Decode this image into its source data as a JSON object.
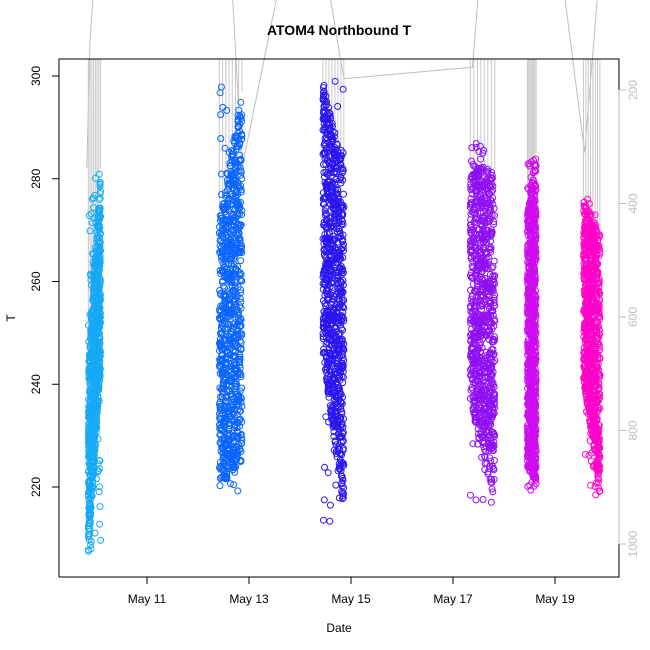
{
  "chart_data": {
    "type": "scatter",
    "title": "ATOM4 Northbound T",
    "xlabel": "Date",
    "ylabel": "T",
    "x_ticks": [
      "May 11",
      "May 13",
      "May 15",
      "May 17",
      "May 19"
    ],
    "xlim": [
      "May 9.7",
      "May 20.3"
    ],
    "ylim": [
      203,
      304
    ],
    "y_ticks": [
      220,
      240,
      260,
      280,
      300
    ],
    "secondary_axis": {
      "side": "right",
      "reversed": true,
      "ticks": [
        200,
        400,
        600,
        800,
        1000
      ],
      "ylim": [
        1067,
        124
      ],
      "color": "#bebebe"
    },
    "grid": false,
    "series": [
      {
        "color": "#17a9f5",
        "segments": [
          {
            "start": 9.85,
            "end": 10.09,
            "ymin": 206,
            "ymax": 282,
            "lowStart": 207,
            "lowEnd": 243,
            "highStart": 243,
            "highEnd": 282
          }
        ]
      },
      {
        "color": "#0a64ff",
        "segments": [
          {
            "start": 12.42,
            "end": 12.86,
            "ymin": 219,
            "ymax": 299,
            "lowStart": 220,
            "lowEnd": 225,
            "highStart": 272,
            "highEnd": 297
          }
        ]
      },
      {
        "color": "#2a16f0",
        "segments": [
          {
            "start": 14.45,
            "end": 14.86,
            "ymin": 212,
            "ymax": 300,
            "lowStart": 246,
            "lowEnd": 214,
            "highStart": 299,
            "highEnd": 282
          }
        ]
      },
      {
        "color": "#8f10f3",
        "segments": [
          {
            "start": 17.34,
            "end": 17.82,
            "ymin": 215,
            "ymax": 288,
            "lowStart": 236,
            "lowEnd": 217,
            "highStart": 283,
            "highEnd": 282
          }
        ]
      },
      {
        "color": "#cf0cf0",
        "segments": [
          {
            "start": 18.46,
            "end": 18.63,
            "ymin": 219,
            "ymax": 285,
            "lowStart": 224,
            "lowEnd": 220,
            "highStart": 273,
            "highEnd": 285
          }
        ]
      },
      {
        "color": "#ff05c8",
        "segments": [
          {
            "start": 19.56,
            "end": 19.88,
            "ymin": 217,
            "ymax": 277,
            "lowStart": 241,
            "lowEnd": 218,
            "highStart": 276,
            "highEnd": 269
          }
        ]
      }
    ],
    "secondary_line": {
      "color": "#bebebe",
      "points": [
        {
          "x": 9.82,
          "y": 338
        },
        {
          "x": 9.88,
          "y": 117
        },
        {
          "x": 9.96,
          "y": 12
        },
        {
          "x": 12.66,
          "y": 8
        },
        {
          "x": 12.86,
          "y": 338
        },
        {
          "x": 13.62,
          "y": 4
        },
        {
          "x": 14.54,
          "y": 9
        },
        {
          "x": 14.86,
          "y": 180
        },
        {
          "x": 17.38,
          "y": 160
        },
        {
          "x": 17.52,
          "y": 5
        },
        {
          "x": 18.48,
          "y": 8
        },
        {
          "x": 19.15,
          "y": 6
        },
        {
          "x": 19.58,
          "y": 310
        },
        {
          "x": 19.86,
          "y": 5
        }
      ]
    }
  }
}
